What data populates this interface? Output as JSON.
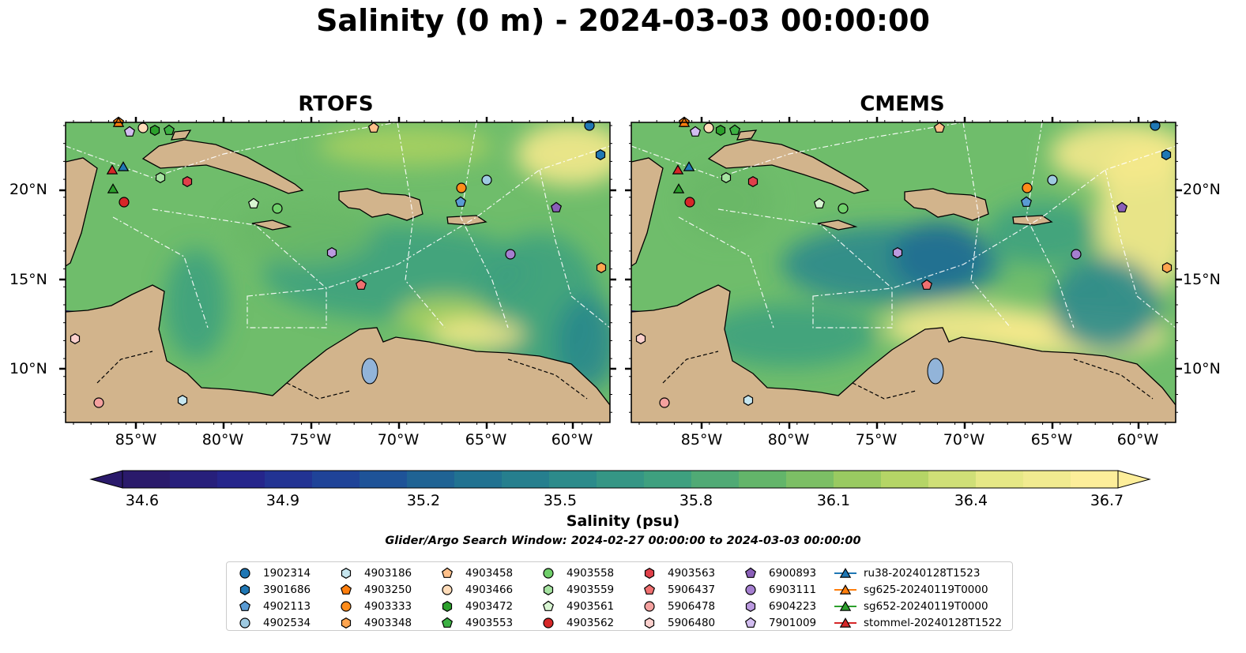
{
  "title": "Salinity (0 m) - 2024-03-03 00:00:00",
  "panels": [
    {
      "title": "RTOFS"
    },
    {
      "title": "CMEMS"
    }
  ],
  "axes": {
    "lon_ticks": [
      "85°W",
      "80°W",
      "75°W",
      "70°W",
      "65°W",
      "60°W"
    ],
    "lat_ticks": [
      "20°N",
      "15°N",
      "10°N"
    ]
  },
  "colorbar": {
    "label": "Salinity (psu)",
    "ticks": [
      "34.6",
      "34.9",
      "35.2",
      "35.5",
      "35.8",
      "36.1",
      "36.4",
      "36.7"
    ],
    "min": 34.6,
    "max": 36.7,
    "extend": "both",
    "colormap_stops": [
      "#2a1a6b",
      "#24268f",
      "#1e4a9a",
      "#1f6e92",
      "#2b8a8c",
      "#3fa17e",
      "#69b867",
      "#a9d05f",
      "#e3e784",
      "#fdee9a"
    ]
  },
  "search_window": "Glider/Argo Search Window: 2024-02-27 00:00:00 to 2024-03-03 00:00:00",
  "colors": {
    "land": "#d2b48c",
    "lakes": "#92b4d9",
    "deep_pacific": "#291a6a",
    "ocean_mid": "#6fbd6b",
    "ocean_fresh": "#3f9283",
    "ocean_salty": "#f5e98c"
  },
  "legend": [
    {
      "label": "1902314",
      "marker": "circle",
      "color": "#1f77b4"
    },
    {
      "label": "3901686",
      "marker": "hexagon",
      "color": "#1f77b4"
    },
    {
      "label": "4902113",
      "marker": "pentagon",
      "color": "#5a9bd4"
    },
    {
      "label": "4902534",
      "marker": "circle",
      "color": "#9ecae1"
    },
    {
      "label": "4903186",
      "marker": "hexagon",
      "color": "#c6e6ef"
    },
    {
      "label": "4903250",
      "marker": "pentagon",
      "color": "#ff7f0e"
    },
    {
      "label": "4903333",
      "marker": "circle",
      "color": "#ff8c1a"
    },
    {
      "label": "4903348",
      "marker": "hexagon",
      "color": "#ffa54f"
    },
    {
      "label": "4903458",
      "marker": "pentagon",
      "color": "#ffc08a"
    },
    {
      "label": "4903466",
      "marker": "circle",
      "color": "#ffdcb9"
    },
    {
      "label": "4903472",
      "marker": "hexagon",
      "color": "#2ca02c"
    },
    {
      "label": "4903553",
      "marker": "pentagon",
      "color": "#3cb043"
    },
    {
      "label": "4903558",
      "marker": "circle",
      "color": "#6fcf6a"
    },
    {
      "label": "4903559",
      "marker": "hexagon",
      "color": "#a6e3a1"
    },
    {
      "label": "4903561",
      "marker": "pentagon",
      "color": "#d8f5d2"
    },
    {
      "label": "4903562",
      "marker": "circle",
      "color": "#d62728"
    },
    {
      "label": "4903563",
      "marker": "hexagon",
      "color": "#e0404a"
    },
    {
      "label": "5906437",
      "marker": "pentagon",
      "color": "#f07070"
    },
    {
      "label": "5906478",
      "marker": "circle",
      "color": "#f4a19f"
    },
    {
      "label": "5906480",
      "marker": "hexagon",
      "color": "#fbd0cd"
    },
    {
      "label": "6900893",
      "marker": "pentagon",
      "color": "#8a5fb8"
    },
    {
      "label": "6903111",
      "marker": "circle",
      "color": "#a57fd0"
    },
    {
      "label": "6904223",
      "marker": "hexagon",
      "color": "#bb9ae0"
    },
    {
      "label": "7901009",
      "marker": "pentagon",
      "color": "#d2bdf0"
    },
    {
      "label": "ru38-20240128T1523",
      "marker": "triangle-line",
      "color": "#1f77b4"
    },
    {
      "label": "sg625-20240119T0000",
      "marker": "triangle-line",
      "color": "#ff7f0e"
    },
    {
      "label": "sg652-20240119T0000",
      "marker": "triangle-line",
      "color": "#2ca02c"
    },
    {
      "label": "stommel-20240128T1522",
      "marker": "triangle-line",
      "color": "#d62728"
    }
  ]
}
